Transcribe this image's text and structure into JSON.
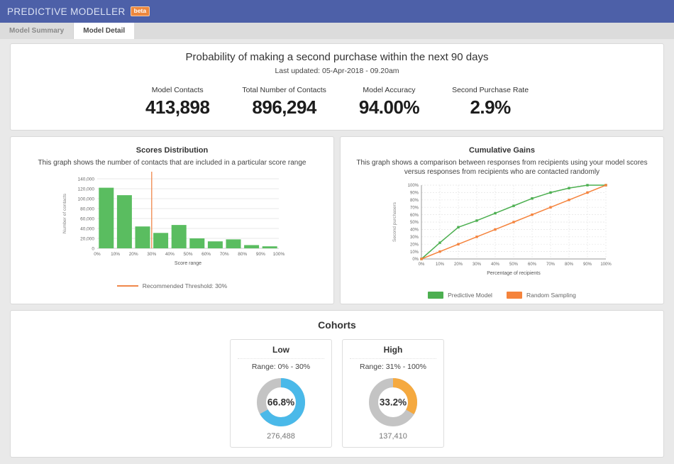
{
  "header": {
    "title": "PREDICTIVE MODELLER",
    "badge": "beta",
    "bg_color": "#4d60a8",
    "badge_color": "#ed873d"
  },
  "tabs": [
    {
      "label": "Model Summary",
      "active": false
    },
    {
      "label": "Model Detail",
      "active": true
    }
  ],
  "summary": {
    "title": "Probability of making a second purchase within the next 90 days",
    "last_updated": "Last updated: 05-Apr-2018 - 09.20am",
    "stats": [
      {
        "label": "Model Contacts",
        "value": "413,898"
      },
      {
        "label": "Total Number of Contacts",
        "value": "896,294"
      },
      {
        "label": "Model Accuracy",
        "value": "94.00%"
      },
      {
        "label": "Second Purchase Rate",
        "value": "2.9%"
      }
    ]
  },
  "chart_data": [
    {
      "type": "bar",
      "title": "Scores Distribution",
      "subtitle": "This graph shows the number of contacts that are included in a particular score range",
      "categories": [
        "0%",
        "10%",
        "20%",
        "30%",
        "40%",
        "50%",
        "60%",
        "70%",
        "80%",
        "90%",
        "100%"
      ],
      "values": [
        122000,
        107000,
        44000,
        31000,
        47000,
        20000,
        14000,
        18000,
        6500,
        4000
      ],
      "xlabel": "Score range",
      "ylabel": "Number of contacts",
      "ylim": [
        0,
        140000
      ],
      "ytick_step": 20000,
      "bar_color": "#5abd60",
      "grid": true,
      "threshold": {
        "x_index": 3,
        "label": "Recommended Threshold: 30%",
        "color": "#f0874a"
      }
    },
    {
      "type": "line",
      "title": "Cumulative Gains",
      "subtitle": "This graph shows a comparison between responses from recipients using your model scores versus responses from recipients who are contacted randomly",
      "x": [
        0,
        10,
        20,
        30,
        40,
        50,
        60,
        70,
        80,
        90,
        100
      ],
      "series": [
        {
          "name": "Predictive Model",
          "color": "#4caf50",
          "values": [
            0,
            22,
            43,
            52,
            62,
            72,
            82,
            90,
            96,
            100,
            100
          ]
        },
        {
          "name": "Random Sampling",
          "color": "#f5833c",
          "values": [
            0,
            10,
            20,
            30,
            40,
            50,
            60,
            70,
            80,
            90,
            100
          ]
        }
      ],
      "xlabel": "Percentage of recipients",
      "ylabel": "Second purchasers",
      "ylim": [
        0,
        100
      ],
      "grid": true,
      "legend_position": "bottom"
    },
    {
      "type": "donut",
      "name": "Low",
      "range_label": "Range: 0% - 30%",
      "percent": 66.8,
      "percent_label": "66.8%",
      "value_label": "276,488",
      "color": "#4ab9e9",
      "track_color": "#c4c4c4"
    },
    {
      "type": "donut",
      "name": "High",
      "range_label": "Range: 31% - 100%",
      "percent": 33.2,
      "percent_label": "33.2%",
      "value_label": "137,410",
      "color": "#f5a93f",
      "track_color": "#c4c4c4"
    }
  ],
  "cohorts": {
    "title": "Cohorts"
  }
}
